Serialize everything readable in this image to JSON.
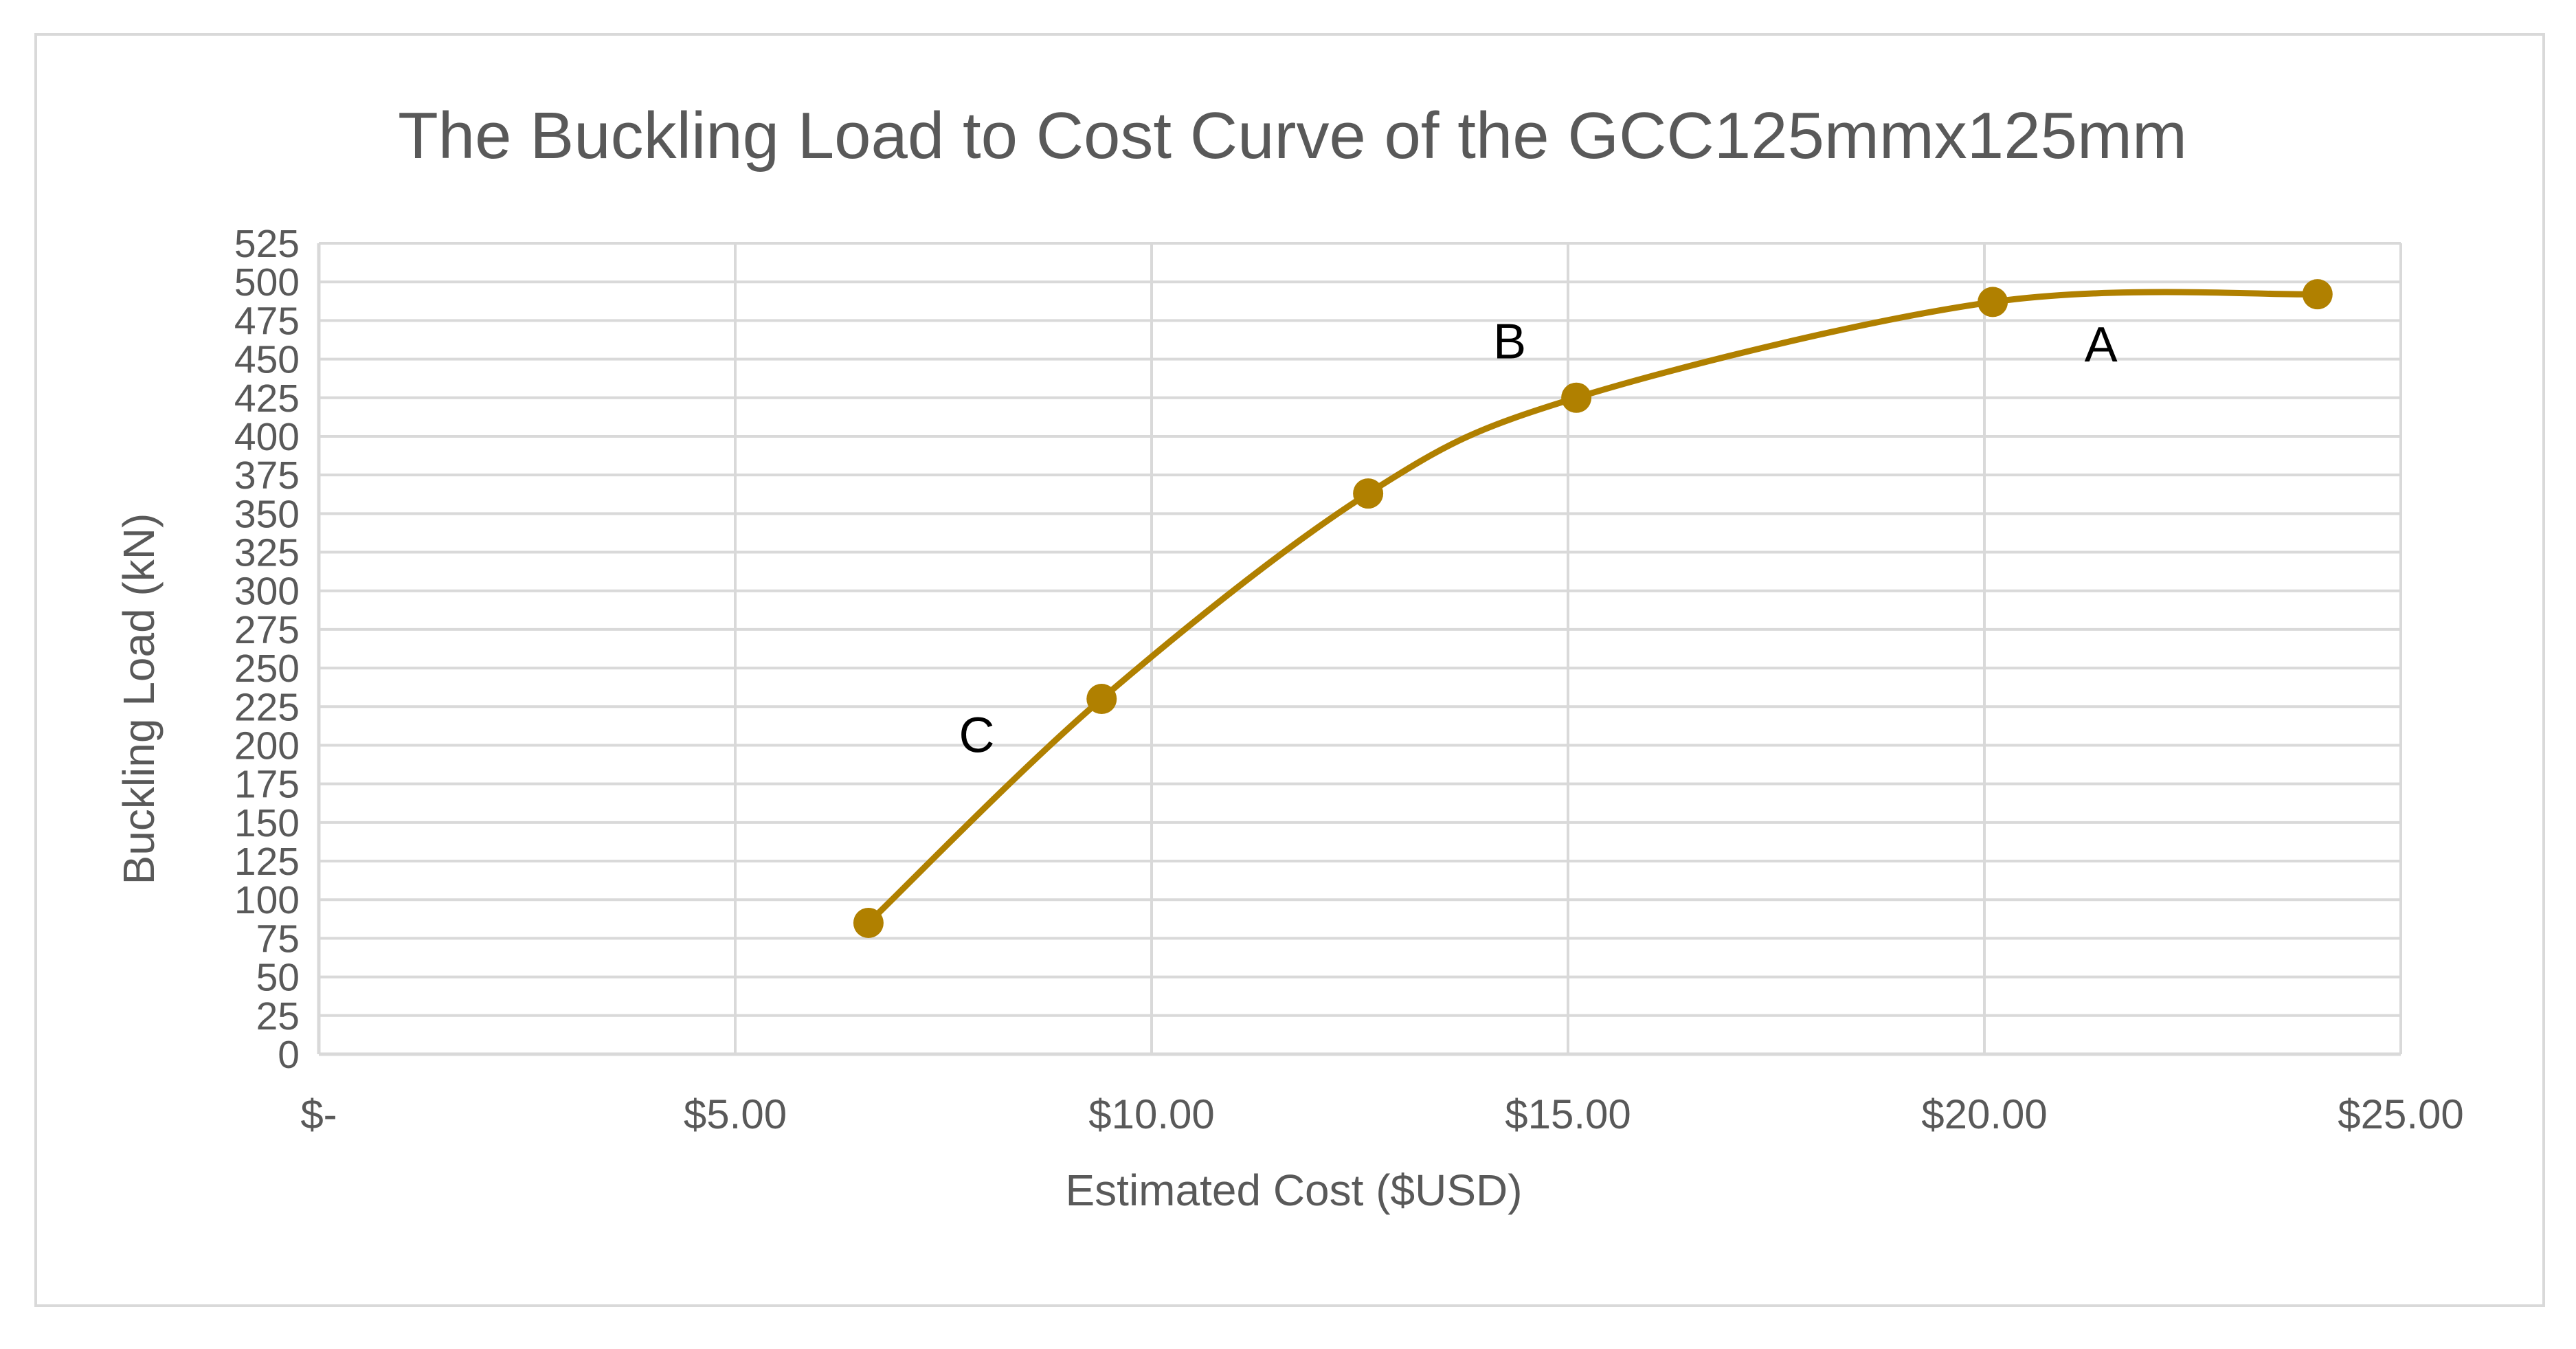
{
  "chart_data": {
    "type": "line",
    "title": "The Buckling Load to Cost Curve of the GCC125mmx125mm",
    "xlabel": "Estimated Cost ($USD)",
    "ylabel": "Buckling Load  (kN)",
    "xlim": [
      0,
      25
    ],
    "ylim": [
      0,
      525
    ],
    "x_ticks": [
      0,
      5,
      10,
      15,
      20,
      25
    ],
    "x_tick_labels": [
      "$-",
      "$5.00",
      "$10.00",
      "$15.00",
      "$20.00",
      "$25.00"
    ],
    "y_ticks": [
      0,
      25,
      50,
      75,
      100,
      125,
      150,
      175,
      200,
      225,
      250,
      275,
      300,
      325,
      350,
      375,
      400,
      425,
      450,
      475,
      500,
      525
    ],
    "y_tick_labels": [
      "0",
      "25",
      "50",
      "75",
      "100",
      "125",
      "150",
      "175",
      "200",
      "225",
      "250",
      "275",
      "300",
      "325",
      "350",
      "375",
      "400",
      "425",
      "450",
      "475",
      "500",
      "525"
    ],
    "grid": true,
    "smooth": true,
    "series": [
      {
        "name": "Buckling Load",
        "color": "#b08000",
        "points": [
          {
            "x": 6.6,
            "y": 85
          },
          {
            "x": 9.4,
            "y": 230
          },
          {
            "x": 12.6,
            "y": 363
          },
          {
            "x": 15.1,
            "y": 425
          },
          {
            "x": 20.1,
            "y": 487
          },
          {
            "x": 24.0,
            "y": 492
          }
        ]
      }
    ],
    "annotations": [
      {
        "text": "A",
        "x": 21.4,
        "y": 460
      },
      {
        "text": "B",
        "x": 14.3,
        "y": 462
      },
      {
        "text": "C",
        "x": 7.9,
        "y": 207
      }
    ]
  }
}
